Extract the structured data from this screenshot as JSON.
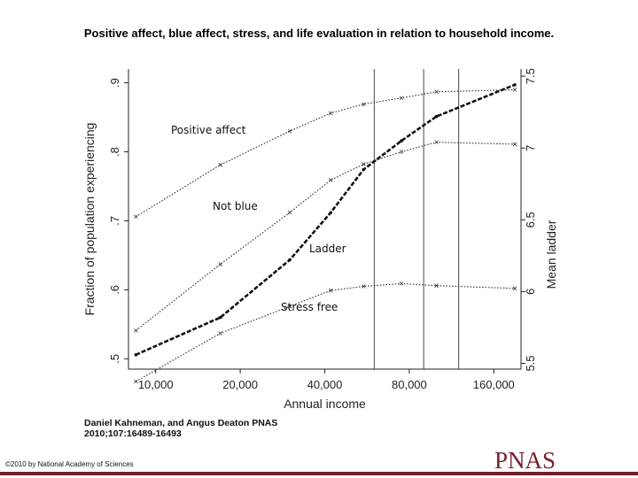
{
  "title": "Positive affect, blue affect, stress, and life evaluation in relation to household income.",
  "citation": {
    "line1": "Daniel Kahneman, and Angus Deaton PNAS",
    "line2": "2010;107:16489-16493"
  },
  "copyright": "©2010 by National Academy of Sciences",
  "publisher_logo": "PNAS",
  "colors": {
    "brand": "#7a1e2e",
    "bottom_rule": "#6d1e2c",
    "lines": "#222222"
  },
  "chart_data": {
    "type": "line",
    "title": "",
    "xlabel": "Annual income",
    "ylabel": "Fraction of population experiencing",
    "ylabel_right": "Mean ladder",
    "x_scale": "log",
    "x_ticks": [
      10000,
      20000,
      40000,
      80000,
      160000
    ],
    "x_tick_labels": [
      "10,000",
      "20,000",
      "40,000",
      "80,000",
      "160,000"
    ],
    "xlim": [
      8000,
      200000
    ],
    "y_left_ticks": [
      0.5,
      0.6,
      0.7,
      0.8,
      0.9
    ],
    "y_left_tick_labels": [
      ".5",
      ".6",
      ".7",
      ".8",
      ".9"
    ],
    "ylim_left": [
      0.485,
      0.92
    ],
    "y_right_ticks": [
      5.5,
      6,
      6.5,
      7,
      7.5
    ],
    "y_right_tick_labels": [
      "5.5",
      "6",
      "6.5",
      "7",
      "7.5"
    ],
    "ylim_right": [
      5.46,
      7.55
    ],
    "vertical_lines_x": [
      60000,
      90000,
      120000
    ],
    "grid": false,
    "x": [
      8500,
      17000,
      30000,
      42000,
      55000,
      75000,
      100000,
      190000
    ],
    "series": [
      {
        "name": "Positive affect",
        "axis": "left",
        "style": "dotted",
        "values": [
          0.706,
          0.781,
          0.83,
          0.856,
          0.869,
          0.878,
          0.887,
          0.89
        ]
      },
      {
        "name": "Not blue",
        "axis": "left",
        "style": "dotted",
        "values": [
          0.541,
          0.637,
          0.712,
          0.759,
          0.782,
          0.8,
          0.814,
          0.811
        ]
      },
      {
        "name": "Stress free",
        "axis": "left",
        "style": "dotted",
        "values": [
          0.467,
          0.537,
          0.576,
          0.599,
          0.605,
          0.609,
          0.606,
          0.602
        ]
      },
      {
        "name": "Ladder",
        "axis": "right",
        "style": "bold-dashed",
        "values": [
          5.56,
          5.82,
          6.22,
          6.55,
          6.85,
          7.05,
          7.22,
          7.44
        ]
      }
    ]
  }
}
